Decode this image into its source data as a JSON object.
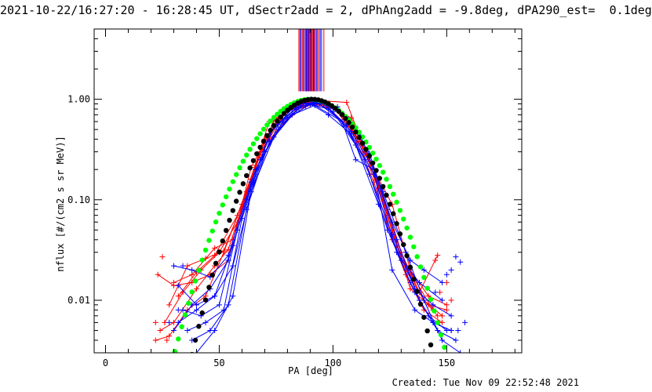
{
  "header": {
    "title": "2021-10-22/16:27:20 - 16:28:45 UT, dSectr2add = 2, dPhAng2add = -9.8deg, dPA290_est=  0.1deg"
  },
  "footer": {
    "created": "Created: Tue Nov 09 22:52:48 2021"
  },
  "colors": {
    "red": "#ff0000",
    "blue": "#0000ff",
    "green": "#00ff00",
    "black": "#000000",
    "purple": "#800080"
  },
  "chart_data": {
    "type": "scatter",
    "title": "",
    "xlabel": "PA [deg]",
    "ylabel": "nflux [#/(cm2 s sr MeV)]",
    "xlim": [
      -5,
      183
    ],
    "ylim": [
      0.003,
      5.0
    ],
    "yscale": "log",
    "xticks": [
      0,
      50,
      100,
      150
    ],
    "xtick_labels": [
      "0",
      "50",
      "100",
      "150"
    ],
    "yticks": [
      0.01,
      0.1,
      1.0
    ],
    "ytick_labels": [
      "0.01",
      "0.10",
      "1.00"
    ],
    "grid": false,
    "reference_line_pa": [
      85.0,
      85.5,
      86.0,
      86.5,
      87.0,
      87.5,
      88.0,
      88.3,
      88.6,
      89.0,
      89.3,
      89.6,
      90.0,
      90.3,
      90.6,
      91.0,
      91.4,
      91.8,
      92.2,
      92.7,
      93.2,
      93.8,
      94.4,
      95.0,
      96.0
    ],
    "series": [
      {
        "color": "red",
        "lines": [
          [
            [
              22,
              0.004
            ],
            [
              28,
              0.0044
            ],
            [
              36,
              0.008
            ],
            [
              44,
              0.011
            ],
            [
              52,
              0.03
            ],
            [
              62,
              0.12
            ],
            [
              72,
              0.6
            ],
            [
              80,
              0.84
            ],
            [
              88,
              0.95
            ],
            [
              98,
              0.82
            ],
            [
              108,
              0.5
            ],
            [
              118,
              0.15
            ],
            [
              126,
              0.04
            ],
            [
              132,
              0.018
            ],
            [
              140,
              0.008
            ],
            [
              148,
              0.006
            ]
          ],
          [
            [
              24,
              0.005
            ],
            [
              30,
              0.006
            ],
            [
              40,
              0.013
            ],
            [
              48,
              0.022
            ],
            [
              54,
              0.032
            ],
            [
              64,
              0.16
            ],
            [
              74,
              0.62
            ],
            [
              84,
              0.87
            ],
            [
              92,
              0.98
            ],
            [
              100,
              0.85
            ],
            [
              110,
              0.43
            ],
            [
              120,
              0.13
            ],
            [
              128,
              0.035
            ],
            [
              136,
              0.016
            ],
            [
              144,
              0.008
            ]
          ],
          [
            [
              26,
              0.006
            ],
            [
              34,
              0.012
            ],
            [
              42,
              0.02
            ],
            [
              50,
              0.03
            ],
            [
              58,
              0.06
            ],
            [
              68,
              0.28
            ],
            [
              78,
              0.7
            ],
            [
              86,
              0.9
            ],
            [
              94,
              0.96
            ],
            [
              104,
              0.72
            ],
            [
              114,
              0.32
            ],
            [
              124,
              0.07
            ],
            [
              132,
              0.02
            ],
            [
              140,
              0.01
            ],
            [
              146,
              0.007
            ]
          ],
          [
            [
              23,
              0.018
            ],
            [
              30,
              0.014
            ],
            [
              38,
              0.015
            ],
            [
              46,
              0.018
            ],
            [
              54,
              0.025
            ],
            [
              64,
              0.21
            ],
            [
              74,
              0.55
            ],
            [
              84,
              0.8
            ],
            [
              92,
              0.93
            ],
            [
              102,
              0.78
            ],
            [
              112,
              0.38
            ],
            [
              122,
              0.11
            ],
            [
              130,
              0.03
            ],
            [
              138,
              0.012
            ],
            [
              146,
              0.028
            ]
          ],
          [
            [
              28,
              0.009
            ],
            [
              36,
              0.022
            ],
            [
              44,
              0.026
            ],
            [
              52,
              0.031
            ],
            [
              60,
              0.09
            ],
            [
              70,
              0.4
            ],
            [
              80,
              0.76
            ],
            [
              90,
              0.91
            ],
            [
              98,
              0.88
            ],
            [
              108,
              0.65
            ],
            [
              118,
              0.2
            ],
            [
              126,
              0.05
            ],
            [
              134,
              0.013
            ],
            [
              142,
              0.009
            ],
            [
              150,
              0.008
            ]
          ],
          [
            [
              30,
              0.015
            ],
            [
              38,
              0.018
            ],
            [
              48,
              0.033
            ],
            [
              56,
              0.04
            ],
            [
              66,
              0.22
            ],
            [
              76,
              0.66
            ],
            [
              86,
              0.88
            ],
            [
              94,
              0.97
            ],
            [
              106,
              0.93
            ],
            [
              116,
              0.24
            ],
            [
              126,
              0.09
            ],
            [
              134,
              0.02
            ],
            [
              142,
              0.011
            ],
            [
              150,
              0.009
            ]
          ],
          [
            [
              32,
              0.011
            ],
            [
              40,
              0.019
            ],
            [
              48,
              0.028
            ],
            [
              58,
              0.07
            ],
            [
              68,
              0.3
            ],
            [
              78,
              0.58
            ],
            [
              88,
              0.85
            ],
            [
              96,
              0.92
            ],
            [
              104,
              0.7
            ],
            [
              114,
              0.3
            ],
            [
              124,
              0.08
            ],
            [
              132,
              0.022
            ],
            [
              140,
              0.01
            ],
            [
              148,
              0.007
            ]
          ]
        ],
        "points": [
          [
            25,
            0.027
          ],
          [
            27,
            0.004
          ],
          [
            22,
            0.006
          ],
          [
            145,
            0.025
          ],
          [
            150,
            0.015
          ],
          [
            147,
            0.012
          ],
          [
            152,
            0.01
          ]
        ]
      },
      {
        "color": "blue",
        "lines": [
          [
            [
              30,
              0.005
            ],
            [
              38,
              0.009
            ],
            [
              46,
              0.013
            ],
            [
              54,
              0.025
            ],
            [
              62,
              0.1
            ],
            [
              72,
              0.45
            ],
            [
              82,
              0.8
            ],
            [
              90,
              0.9
            ],
            [
              98,
              0.7
            ],
            [
              108,
              0.45
            ],
            [
              118,
              0.18
            ],
            [
              128,
              0.03
            ],
            [
              136,
              0.012
            ],
            [
              144,
              0.006
            ],
            [
              152,
              0.005
            ]
          ],
          [
            [
              32,
              0.006
            ],
            [
              40,
              0.008
            ],
            [
              48,
              0.011
            ],
            [
              56,
              0.035
            ],
            [
              66,
              0.2
            ],
            [
              76,
              0.5
            ],
            [
              86,
              0.86
            ],
            [
              94,
              0.9
            ],
            [
              104,
              0.6
            ],
            [
              114,
              0.25
            ],
            [
              124,
              0.05
            ],
            [
              134,
              0.015
            ],
            [
              142,
              0.007
            ],
            [
              150,
              0.005
            ]
          ],
          [
            [
              34,
              0.008
            ],
            [
              42,
              0.007
            ],
            [
              50,
              0.009
            ],
            [
              58,
              0.05
            ],
            [
              68,
              0.25
            ],
            [
              78,
              0.6
            ],
            [
              88,
              0.92
            ],
            [
              96,
              0.9
            ],
            [
              106,
              0.55
            ],
            [
              116,
              0.18
            ],
            [
              126,
              0.045
            ],
            [
              136,
              0.013
            ],
            [
              144,
              0.009
            ],
            [
              152,
              0.007
            ]
          ],
          [
            [
              30,
              0.022
            ],
            [
              38,
              0.02
            ],
            [
              46,
              0.017
            ],
            [
              54,
              0.028
            ],
            [
              64,
              0.15
            ],
            [
              74,
              0.53
            ],
            [
              84,
              0.82
            ],
            [
              92,
              0.94
            ],
            [
              100,
              0.75
            ],
            [
              110,
              0.35
            ],
            [
              120,
              0.09
            ],
            [
              130,
              0.025
            ],
            [
              138,
              0.015
            ],
            [
              148,
              0.01
            ]
          ],
          [
            [
              36,
              0.005
            ],
            [
              44,
              0.006
            ],
            [
              52,
              0.008
            ],
            [
              60,
              0.065
            ],
            [
              70,
              0.3
            ],
            [
              80,
              0.65
            ],
            [
              90,
              0.89
            ],
            [
              98,
              0.8
            ],
            [
              108,
              0.48
            ],
            [
              118,
              0.2
            ],
            [
              128,
              0.04
            ],
            [
              138,
              0.01
            ],
            [
              146,
              0.005
            ],
            [
              154,
              0.004
            ]
          ],
          [
            [
              38,
              0.004
            ],
            [
              46,
              0.005
            ],
            [
              54,
              0.009
            ],
            [
              62,
              0.08
            ],
            [
              72,
              0.38
            ],
            [
              82,
              0.7
            ],
            [
              92,
              0.87
            ],
            [
              104,
              0.6
            ],
            [
              110,
              0.25
            ],
            [
              118,
              0.2
            ],
            [
              126,
              0.02
            ],
            [
              136,
              0.008
            ],
            [
              144,
              0.006
            ],
            [
              152,
              0.005
            ]
          ],
          [
            [
              40,
              0.003
            ],
            [
              48,
              0.005
            ],
            [
              56,
              0.011
            ],
            [
              64,
              0.12
            ],
            [
              74,
              0.42
            ],
            [
              84,
              0.78
            ],
            [
              92,
              0.93
            ],
            [
              102,
              0.84
            ],
            [
              112,
              0.44
            ],
            [
              122,
              0.12
            ],
            [
              132,
              0.03
            ],
            [
              140,
              0.01
            ],
            [
              148,
              0.004
            ],
            [
              156,
              0.003
            ]
          ],
          [
            [
              32,
              0.014
            ],
            [
              40,
              0.009
            ],
            [
              48,
              0.011
            ],
            [
              56,
              0.022
            ],
            [
              66,
              0.18
            ],
            [
              76,
              0.56
            ],
            [
              86,
              0.9
            ],
            [
              96,
              0.9
            ],
            [
              106,
              0.66
            ],
            [
              116,
              0.29
            ],
            [
              126,
              0.06
            ],
            [
              134,
              0.025
            ],
            [
              140,
              0.02
            ],
            [
              148,
              0.015
            ]
          ]
        ],
        "points": [
          [
            32,
            0.008
          ],
          [
            34,
            0.022
          ],
          [
            28,
            0.006
          ],
          [
            152,
            0.02
          ],
          [
            154,
            0.027
          ],
          [
            156,
            0.024
          ],
          [
            150,
            0.018
          ],
          [
            158,
            0.006
          ],
          [
            155,
            0.005
          ],
          [
            145,
            0.012
          ]
        ]
      }
    ],
    "model_curves": [
      {
        "color": "green",
        "peak": 1.0,
        "center": 90,
        "sigma": 17.5
      },
      {
        "color": "black",
        "peak": 1.0,
        "center": 91,
        "sigma": 15.5
      }
    ]
  }
}
